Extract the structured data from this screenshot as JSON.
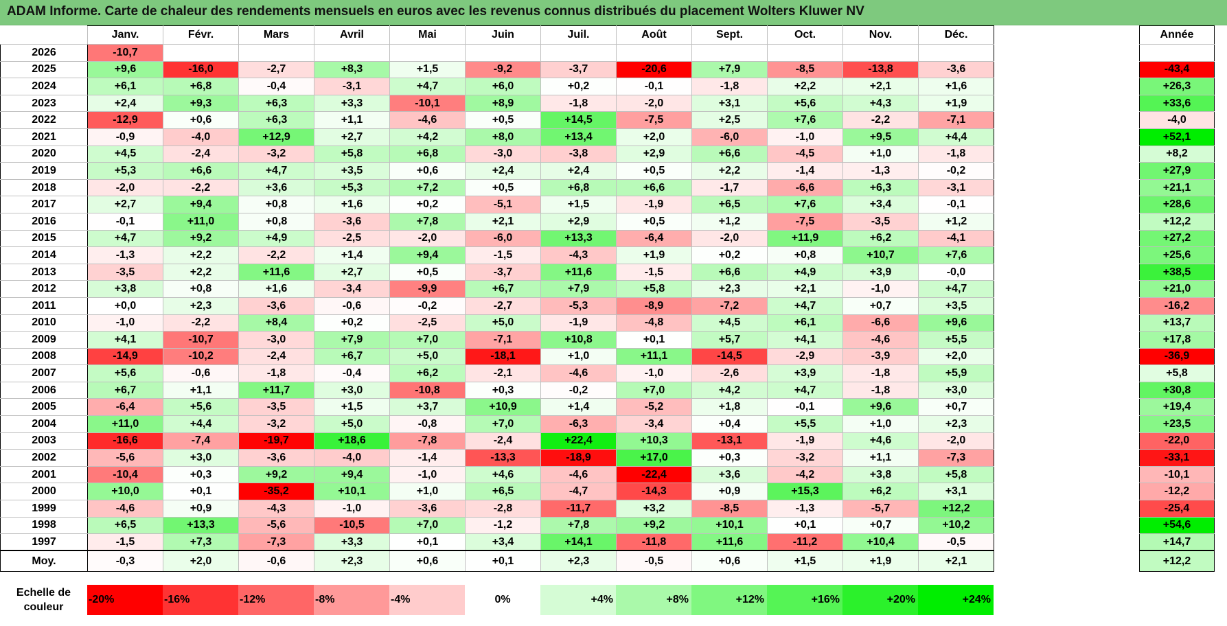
{
  "title": "ADAM Informe. Carte de chaleur des rendements mensuels en euros avec les revenus connus distribués du placement Wolters Kluwer NV",
  "months": [
    "Janv.",
    "Févr.",
    "Mars",
    "Avril",
    "Mai",
    "Juin",
    "Juil.",
    "Août",
    "Sept.",
    "Oct.",
    "Nov.",
    "Déc."
  ],
  "annual_header": "Année",
  "avg_label": "Moy.",
  "scale_label": "Echelle de couleur",
  "chart_data": {
    "type": "heatmap",
    "title": "ADAM Informe. Carte de chaleur des rendements mensuels en euros avec les revenus connus distribués du placement Wolters Kluwer NV",
    "x": [
      "Janv.",
      "Févr.",
      "Mars",
      "Avril",
      "Mai",
      "Juin",
      "Juil.",
      "Août",
      "Sept.",
      "Oct.",
      "Nov.",
      "Déc.",
      "Année"
    ],
    "rows": [
      {
        "year": "2026",
        "values": [
          "-10,7",
          "",
          "",
          "",
          "",
          "",
          "",
          "",
          "",
          "",
          "",
          "",
          ""
        ]
      },
      {
        "year": "2025",
        "values": [
          "+9,6",
          "-16,0",
          "-2,7",
          "+8,3",
          "+1,5",
          "-9,2",
          "-3,7",
          "-20,6",
          "+7,9",
          "-8,5",
          "-13,8",
          "-3,6",
          "-43,4"
        ]
      },
      {
        "year": "2024",
        "values": [
          "+6,1",
          "+6,8",
          "-0,4",
          "-3,1",
          "+4,7",
          "+6,0",
          "+0,2",
          "-0,1",
          "-1,8",
          "+2,2",
          "+2,1",
          "+1,6",
          "+26,3"
        ]
      },
      {
        "year": "2023",
        "values": [
          "+2,4",
          "+9,3",
          "+6,3",
          "+3,3",
          "-10,1",
          "+8,9",
          "-1,8",
          "-2,0",
          "+3,1",
          "+5,6",
          "+4,3",
          "+1,9",
          "+33,6"
        ]
      },
      {
        "year": "2022",
        "values": [
          "-12,9",
          "+0,6",
          "+6,3",
          "+1,1",
          "-4,6",
          "+0,5",
          "+14,5",
          "-7,5",
          "+2,5",
          "+7,6",
          "-2,2",
          "-7,1",
          "-4,0"
        ]
      },
      {
        "year": "2021",
        "values": [
          "-0,9",
          "-4,0",
          "+12,9",
          "+2,7",
          "+4,2",
          "+8,0",
          "+13,4",
          "+2,0",
          "-6,0",
          "-1,0",
          "+9,5",
          "+4,4",
          "+52,1"
        ]
      },
      {
        "year": "2020",
        "values": [
          "+4,5",
          "-2,4",
          "-3,2",
          "+5,8",
          "+6,8",
          "-3,0",
          "-3,8",
          "+2,9",
          "+6,6",
          "-4,5",
          "+1,0",
          "-1,8",
          "+8,2"
        ]
      },
      {
        "year": "2019",
        "values": [
          "+5,3",
          "+6,6",
          "+4,7",
          "+3,5",
          "+0,6",
          "+2,4",
          "+2,4",
          "+0,5",
          "+2,2",
          "-1,4",
          "-1,3",
          "-0,2",
          "+27,9"
        ]
      },
      {
        "year": "2018",
        "values": [
          "-2,0",
          "-2,2",
          "+3,6",
          "+5,3",
          "+7,2",
          "+0,5",
          "+6,8",
          "+6,6",
          "-1,7",
          "-6,6",
          "+6,3",
          "-3,1",
          "+21,1"
        ]
      },
      {
        "year": "2017",
        "values": [
          "+2,7",
          "+9,4",
          "+0,8",
          "+1,6",
          "+0,2",
          "-5,1",
          "+1,5",
          "-1,9",
          "+6,5",
          "+7,6",
          "+3,4",
          "-0,1",
          "+28,6"
        ]
      },
      {
        "year": "2016",
        "values": [
          "-0,1",
          "+11,0",
          "+0,8",
          "-3,6",
          "+7,8",
          "+2,1",
          "+2,9",
          "+0,5",
          "+1,2",
          "-7,5",
          "-3,5",
          "+1,2",
          "+12,2"
        ]
      },
      {
        "year": "2015",
        "values": [
          "+4,7",
          "+9,2",
          "+4,9",
          "-2,5",
          "-2,0",
          "-6,0",
          "+13,3",
          "-6,4",
          "-2,0",
          "+11,9",
          "+6,2",
          "-4,1",
          "+27,2"
        ]
      },
      {
        "year": "2014",
        "values": [
          "-1,3",
          "+2,2",
          "-2,2",
          "+1,4",
          "+9,4",
          "-1,5",
          "-4,3",
          "+1,9",
          "+0,2",
          "+0,8",
          "+10,7",
          "+7,6",
          "+25,6"
        ]
      },
      {
        "year": "2013",
        "values": [
          "-3,5",
          "+2,2",
          "+11,6",
          "+2,7",
          "+0,5",
          "-3,7",
          "+11,6",
          "-1,5",
          "+6,6",
          "+4,9",
          "+3,9",
          "-0,0",
          "+38,5"
        ]
      },
      {
        "year": "2012",
        "values": [
          "+3,8",
          "+0,8",
          "+1,6",
          "-3,4",
          "-9,9",
          "+6,7",
          "+7,9",
          "+5,8",
          "+2,3",
          "+2,1",
          "-1,0",
          "+4,7",
          "+21,0"
        ]
      },
      {
        "year": "2011",
        "values": [
          "+0,0",
          "+2,3",
          "-3,6",
          "-0,6",
          "-0,2",
          "-2,7",
          "-5,3",
          "-8,9",
          "-7,2",
          "+4,7",
          "+0,7",
          "+3,5",
          "-16,2"
        ]
      },
      {
        "year": "2010",
        "values": [
          "-1,0",
          "-2,2",
          "+8,4",
          "+0,2",
          "-2,5",
          "+5,0",
          "-1,9",
          "-4,8",
          "+4,5",
          "+6,1",
          "-6,6",
          "+9,6",
          "+13,7"
        ]
      },
      {
        "year": "2009",
        "values": [
          "+4,1",
          "-10,7",
          "-3,0",
          "+7,9",
          "+7,0",
          "-7,1",
          "+10,8",
          "+0,1",
          "+5,7",
          "+4,1",
          "-4,6",
          "+5,5",
          "+17,8"
        ]
      },
      {
        "year": "2008",
        "values": [
          "-14,9",
          "-10,2",
          "-2,4",
          "+6,7",
          "+5,0",
          "-18,1",
          "+1,0",
          "+11,1",
          "-14,5",
          "-2,9",
          "-3,9",
          "+2,0",
          "-36,9"
        ]
      },
      {
        "year": "2007",
        "values": [
          "+5,6",
          "-0,6",
          "-1,8",
          "-0,4",
          "+6,2",
          "-2,1",
          "-4,6",
          "-1,0",
          "-2,6",
          "+3,9",
          "-1,8",
          "+5,9",
          "+5,8"
        ]
      },
      {
        "year": "2006",
        "values": [
          "+6,7",
          "+1,1",
          "+11,7",
          "+3,0",
          "-10,8",
          "+0,3",
          "-0,2",
          "+7,0",
          "+4,2",
          "+4,7",
          "-1,8",
          "+3,0",
          "+30,8"
        ]
      },
      {
        "year": "2005",
        "values": [
          "-6,4",
          "+5,6",
          "-3,5",
          "+1,5",
          "+3,7",
          "+10,9",
          "+1,4",
          "-5,2",
          "+1,8",
          "-0,1",
          "+9,6",
          "+0,7",
          "+19,4"
        ]
      },
      {
        "year": "2004",
        "values": [
          "+11,0",
          "+4,4",
          "-3,2",
          "+5,0",
          "-0,8",
          "+7,0",
          "-6,3",
          "-3,4",
          "+0,4",
          "+5,5",
          "+1,0",
          "+2,3",
          "+23,5"
        ]
      },
      {
        "year": "2003",
        "values": [
          "-16,6",
          "-7,4",
          "-19,7",
          "+18,6",
          "-7,8",
          "-2,4",
          "+22,4",
          "+10,3",
          "-13,1",
          "-1,9",
          "+4,6",
          "-2,0",
          "-22,0"
        ]
      },
      {
        "year": "2002",
        "values": [
          "-5,6",
          "+3,0",
          "-3,6",
          "-4,0",
          "-1,4",
          "-13,3",
          "-18,9",
          "+17,0",
          "+0,3",
          "-3,2",
          "+1,1",
          "-7,3",
          "-33,1"
        ]
      },
      {
        "year": "2001",
        "values": [
          "-10,4",
          "+0,3",
          "+9,2",
          "+9,4",
          "-1,0",
          "+4,6",
          "-4,6",
          "-22,4",
          "+3,6",
          "-4,2",
          "+3,8",
          "+5,8",
          "-10,1"
        ]
      },
      {
        "year": "2000",
        "values": [
          "+10,0",
          "+0,1",
          "-35,2",
          "+10,1",
          "+1,0",
          "+6,5",
          "-4,7",
          "-14,3",
          "+0,9",
          "+15,3",
          "+6,2",
          "+3,1",
          "-12,2"
        ]
      },
      {
        "year": "1999",
        "values": [
          "-4,6",
          "+0,9",
          "-4,3",
          "-1,0",
          "-3,6",
          "-2,8",
          "-11,7",
          "+3,2",
          "-8,5",
          "-1,3",
          "-5,7",
          "+12,2",
          "-25,4"
        ]
      },
      {
        "year": "1998",
        "values": [
          "+6,5",
          "+13,3",
          "-5,6",
          "-10,5",
          "+7,0",
          "-1,2",
          "+7,8",
          "+9,2",
          "+10,1",
          "+0,1",
          "+0,7",
          "+10,2",
          "+54,6"
        ]
      },
      {
        "year": "1997",
        "values": [
          "-1,5",
          "+7,3",
          "-7,3",
          "+3,3",
          "+0,1",
          "+3,4",
          "+14,1",
          "-11,8",
          "+11,6",
          "-11,2",
          "+10,4",
          "-0,5",
          "+14,7"
        ]
      }
    ],
    "average": [
      "-0,3",
      "+2,0",
      "-0,6",
      "+2,3",
      "+0,6",
      "+0,1",
      "+2,3",
      "-0,5",
      "+0,6",
      "+1,5",
      "+1,9",
      "+2,1",
      "+12,2"
    ],
    "color_scale": [
      {
        "label": "-20%",
        "value": -20
      },
      {
        "label": "-16%",
        "value": -16
      },
      {
        "label": "-12%",
        "value": -12
      },
      {
        "label": "-8%",
        "value": -8
      },
      {
        "label": "-4%",
        "value": -4
      },
      {
        "label": "0%",
        "value": 0
      },
      {
        "label": "+4%",
        "value": 4
      },
      {
        "label": "+8%",
        "value": 8
      },
      {
        "label": "+12%",
        "value": 12
      },
      {
        "label": "+16%",
        "value": 16
      },
      {
        "label": "+20%",
        "value": 20
      },
      {
        "label": "+24%",
        "value": 24
      }
    ],
    "colors": {
      "negative": "#ff0000",
      "positive": "#00ee00",
      "neutral": "#ffffff",
      "title_bar": "#7ec97e"
    }
  }
}
